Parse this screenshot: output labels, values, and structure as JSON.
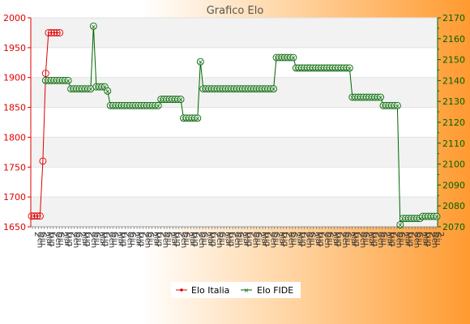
{
  "chart_data": {
    "type": "line",
    "title": "Grafico Elo",
    "xlabel": "",
    "ylabel": "",
    "grid": true,
    "legend": "bottom-center",
    "left_axis": {
      "ylim": [
        1650,
        2000
      ],
      "ticks": [
        1650,
        1700,
        1750,
        1800,
        1850,
        1900,
        1950,
        2000
      ],
      "color": "#e00000"
    },
    "right_axis": {
      "ylim": [
        2070,
        2170
      ],
      "ticks": [
        2070,
        2080,
        2090,
        2100,
        2110,
        2120,
        2130,
        2140,
        2150,
        2160,
        2170
      ],
      "color": "#006400"
    },
    "x_point_count": 136,
    "x_tick_texts": [
      "2",
      "Gen",
      "Giu",
      "2",
      "Mar",
      "Lug"
    ],
    "series": [
      {
        "name": "Elo Italia",
        "axis": "left",
        "color": "#e00000",
        "points": [
          {
            "i": 0,
            "y": 1668
          },
          {
            "i": 1,
            "y": 1668
          },
          {
            "i": 2,
            "y": 1668
          },
          {
            "i": 3,
            "y": 1668
          },
          {
            "i": 4,
            "y": 1760
          },
          {
            "i": 5,
            "y": 1907
          },
          {
            "i": 6,
            "y": 1975
          },
          {
            "i": 7,
            "y": 1975
          },
          {
            "i": 8,
            "y": 1975
          },
          {
            "i": 9,
            "y": 1975
          },
          {
            "i": 10,
            "y": 1975
          }
        ]
      },
      {
        "name": "Elo FIDE",
        "axis": "right",
        "color": "#006400",
        "segments": [
          {
            "from": 5,
            "to": 13,
            "y": 2140
          },
          {
            "from": 14,
            "to": 21,
            "y": 2136
          },
          {
            "from": 22,
            "to": 22,
            "y": 2166
          },
          {
            "from": 23,
            "to": 26,
            "y": 2137
          },
          {
            "from": 27,
            "to": 27,
            "y": 2135
          },
          {
            "from": 28,
            "to": 45,
            "y": 2128
          },
          {
            "from": 46,
            "to": 53,
            "y": 2131
          },
          {
            "from": 54,
            "to": 59,
            "y": 2122
          },
          {
            "from": 60,
            "to": 60,
            "y": 2149
          },
          {
            "from": 61,
            "to": 86,
            "y": 2136
          },
          {
            "from": 87,
            "to": 93,
            "y": 2151
          },
          {
            "from": 94,
            "to": 113,
            "y": 2146
          },
          {
            "from": 114,
            "to": 124,
            "y": 2132
          },
          {
            "from": 125,
            "to": 130,
            "y": 2128
          },
          {
            "from": 131,
            "to": 131,
            "y": 2071
          },
          {
            "from": 132,
            "to": 138,
            "y": 2074
          },
          {
            "from": 139,
            "to": 144,
            "y": 2075
          }
        ]
      }
    ]
  }
}
